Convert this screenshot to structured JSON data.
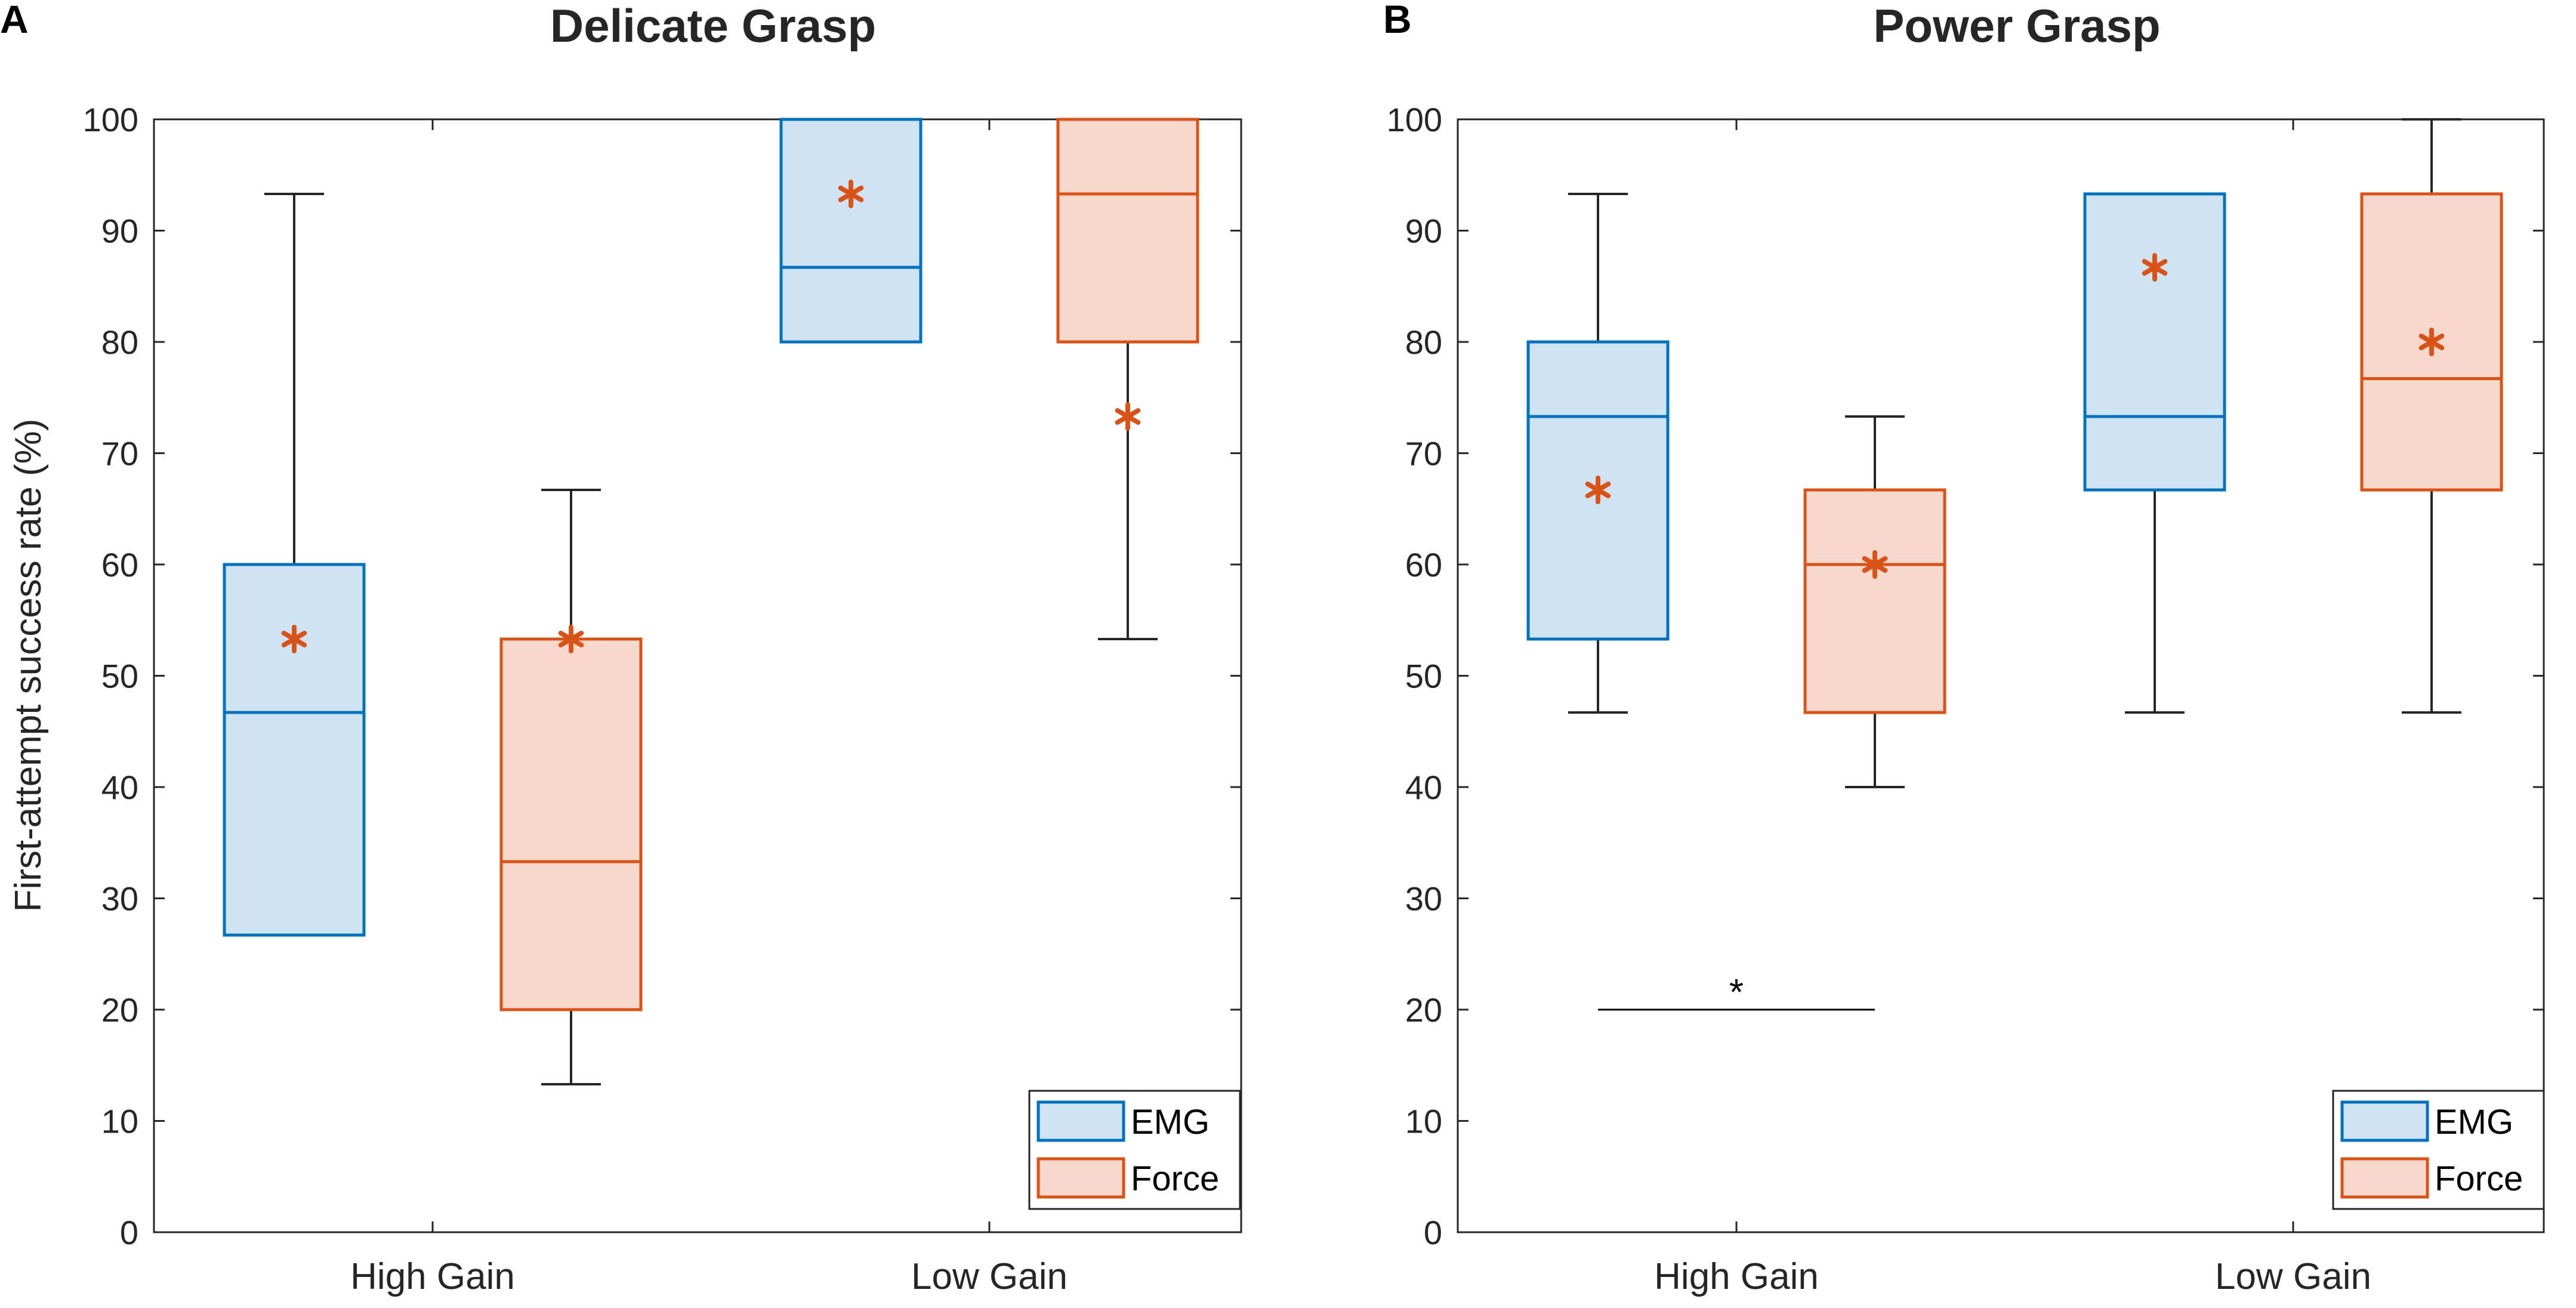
{
  "colors": {
    "emg_edge": "#0072BD",
    "emg_fill": "#CFE3F2",
    "force_edge": "#D95319",
    "force_fill": "#F6D8CC",
    "mean_marker": "#D95319",
    "whisker": "#262626",
    "axis": "#262626"
  },
  "chart_data": [
    {
      "panel_label": "A",
      "type": "box",
      "title": "Delicate Grasp",
      "ylabel": "First-attempt success rate (%)",
      "xlabel": "",
      "ylim": [
        0,
        100
      ],
      "yticks": [
        0,
        10,
        20,
        30,
        40,
        50,
        60,
        70,
        80,
        90,
        100
      ],
      "categories": [
        "High Gain",
        "Low Gain"
      ],
      "legend": {
        "position": "bottom-right",
        "entries": [
          "EMG",
          "Force"
        ]
      },
      "series": [
        {
          "name": "EMG",
          "boxes": [
            {
              "category": "High Gain",
              "whisker_low": 26.7,
              "q1": 26.7,
              "median": 46.7,
              "q3": 60.0,
              "whisker_high": 93.3,
              "mean": 53.3
            },
            {
              "category": "Low Gain",
              "whisker_low": 80.0,
              "q1": 80.0,
              "median": 86.7,
              "q3": 100.0,
              "whisker_high": 100.0,
              "mean": 93.3
            }
          ]
        },
        {
          "name": "Force",
          "boxes": [
            {
              "category": "High Gain",
              "whisker_low": 13.3,
              "q1": 20.0,
              "median": 33.3,
              "q3": 53.3,
              "whisker_high": 66.7,
              "mean": 53.3
            },
            {
              "category": "Low Gain",
              "whisker_low": 53.3,
              "q1": 80.0,
              "median": 93.3,
              "q3": 100.0,
              "whisker_high": 100.0,
              "mean": 73.3
            }
          ]
        }
      ],
      "significance": []
    },
    {
      "panel_label": "B",
      "type": "box",
      "title": "Power Grasp",
      "ylabel": "",
      "xlabel": "",
      "ylim": [
        0,
        100
      ],
      "yticks": [
        0,
        10,
        20,
        30,
        40,
        50,
        60,
        70,
        80,
        90,
        100
      ],
      "categories": [
        "High Gain",
        "Low Gain"
      ],
      "legend": {
        "position": "bottom-right",
        "entries": [
          "EMG",
          "Force"
        ]
      },
      "series": [
        {
          "name": "EMG",
          "boxes": [
            {
              "category": "High Gain",
              "whisker_low": 46.7,
              "q1": 53.3,
              "median": 73.3,
              "q3": 80.0,
              "whisker_high": 93.3,
              "mean": 66.7
            },
            {
              "category": "Low Gain",
              "whisker_low": 46.7,
              "q1": 66.7,
              "median": 73.3,
              "q3": 93.3,
              "whisker_high": 93.3,
              "mean": 86.7
            }
          ]
        },
        {
          "name": "Force",
          "boxes": [
            {
              "category": "High Gain",
              "whisker_low": 40.0,
              "q1": 46.7,
              "median": 60.0,
              "q3": 66.7,
              "whisker_high": 73.3,
              "mean": 60.0
            },
            {
              "category": "Low Gain",
              "whisker_low": 46.7,
              "q1": 66.7,
              "median": 76.7,
              "q3": 93.3,
              "whisker_high": 100.0,
              "mean": 80.0
            }
          ]
        }
      ],
      "significance": [
        {
          "between": [
            "High Gain EMG",
            "High Gain Force"
          ],
          "level": 20,
          "label": "*"
        }
      ]
    }
  ]
}
